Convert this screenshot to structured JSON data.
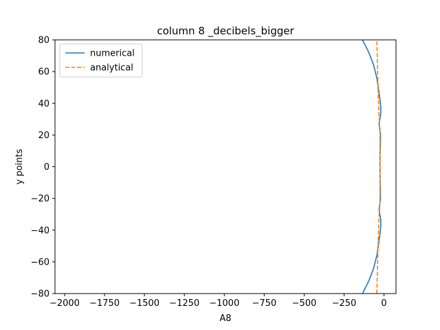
{
  "chart_data": {
    "type": "line",
    "title": "column 8 _decibels_bigger",
    "xlabel": "A8",
    "ylabel": "y points",
    "xlim": [
      -2060,
      75
    ],
    "ylim": [
      -80,
      80
    ],
    "xticks": [
      -2000,
      -1750,
      -1500,
      -1250,
      -1000,
      -750,
      -500,
      -250,
      0
    ],
    "yticks": [
      -80,
      -60,
      -40,
      -20,
      0,
      20,
      40,
      60,
      80
    ],
    "grid": false,
    "legend_position": "top-left",
    "series": [
      {
        "name": "numerical",
        "color": "#1f77b4",
        "style": "solid",
        "points": [
          [
            -135,
            -80
          ],
          [
            -95,
            -72
          ],
          [
            -65,
            -64
          ],
          [
            -45,
            -56
          ],
          [
            -33,
            -48
          ],
          [
            -25,
            -42
          ],
          [
            -20,
            -37
          ],
          [
            -21,
            -33
          ],
          [
            -28,
            -29
          ],
          [
            -31,
            -27
          ],
          [
            -27,
            -24
          ],
          [
            -22,
            -20
          ],
          [
            -23,
            -14
          ],
          [
            -25,
            -8
          ],
          [
            -25,
            0
          ],
          [
            -25,
            8
          ],
          [
            -23,
            14
          ],
          [
            -22,
            20
          ],
          [
            -27,
            24
          ],
          [
            -31,
            27
          ],
          [
            -28,
            29
          ],
          [
            -21,
            33
          ],
          [
            -20,
            37
          ],
          [
            -25,
            42
          ],
          [
            -33,
            48
          ],
          [
            -45,
            56
          ],
          [
            -65,
            64
          ],
          [
            -95,
            72
          ],
          [
            -135,
            80
          ]
        ]
      },
      {
        "name": "analytical",
        "color": "#ff7f0e",
        "style": "dashed",
        "points": [
          [
            -45,
            -80
          ],
          [
            -40,
            -60
          ],
          [
            -36,
            -45
          ],
          [
            -33,
            -36
          ],
          [
            -30,
            -30
          ],
          [
            -27,
            -25
          ],
          [
            -25,
            -18
          ],
          [
            -25,
            -10
          ],
          [
            -25,
            0
          ],
          [
            -25,
            10
          ],
          [
            -25,
            18
          ],
          [
            -27,
            25
          ],
          [
            -30,
            30
          ],
          [
            -33,
            36
          ],
          [
            -36,
            45
          ],
          [
            -40,
            60
          ],
          [
            -45,
            80
          ]
        ]
      }
    ]
  }
}
